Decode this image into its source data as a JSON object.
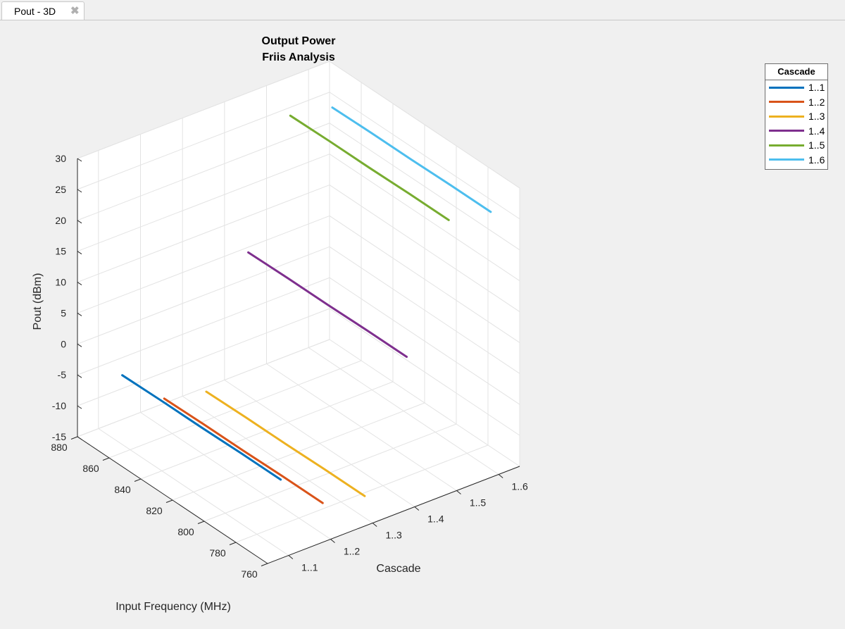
{
  "tab": {
    "label": "Pout - 3D",
    "close_icon": "close-icon"
  },
  "chart_data": {
    "type": "line",
    "projection": "3d",
    "title": [
      "Output Power",
      "Friis Analysis"
    ],
    "xlabel": "Input Frequency (MHz)",
    "ylabel": "Cascade",
    "zlabel": "Pout (dBm)",
    "xlim": [
      760,
      880
    ],
    "xticks": [
      760,
      780,
      800,
      820,
      840,
      860,
      880
    ],
    "ycategories": [
      "1..1",
      "1..2",
      "1..3",
      "1..4",
      "1..5",
      "1..6"
    ],
    "zlim": [
      -15,
      30
    ],
    "zticks": [
      -15,
      -10,
      -5,
      0,
      5,
      10,
      15,
      20,
      25,
      30
    ],
    "grid": true,
    "legend": {
      "title": "Cascade",
      "placement": "top-right"
    },
    "x": [
      765,
      790,
      815,
      840,
      865
    ],
    "series": [
      {
        "name": "1..1",
        "color": "#0072BD",
        "values": [
          -3.6,
          -3.6,
          -3.7,
          -3.7,
          -3.8
        ]
      },
      {
        "name": "1..2",
        "color": "#D95319",
        "values": [
          -10.0,
          -10.0,
          -10.1,
          -10.1,
          -10.2
        ]
      },
      {
        "name": "1..3",
        "color": "#EDB120",
        "values": [
          -11.5,
          -11.5,
          -11.6,
          -11.6,
          -11.7
        ]
      },
      {
        "name": "1..4",
        "color": "#7E2F8E",
        "values": [
          8.4,
          8.4,
          8.3,
          8.3,
          8.2
        ]
      },
      {
        "name": "1..5",
        "color": "#77AC30",
        "values": [
          27.9,
          27.9,
          27.8,
          27.8,
          27.7
        ]
      },
      {
        "name": "1..6",
        "color": "#4DBEEE",
        "values": [
          26.6,
          26.6,
          26.5,
          26.5,
          26.4
        ]
      }
    ]
  }
}
